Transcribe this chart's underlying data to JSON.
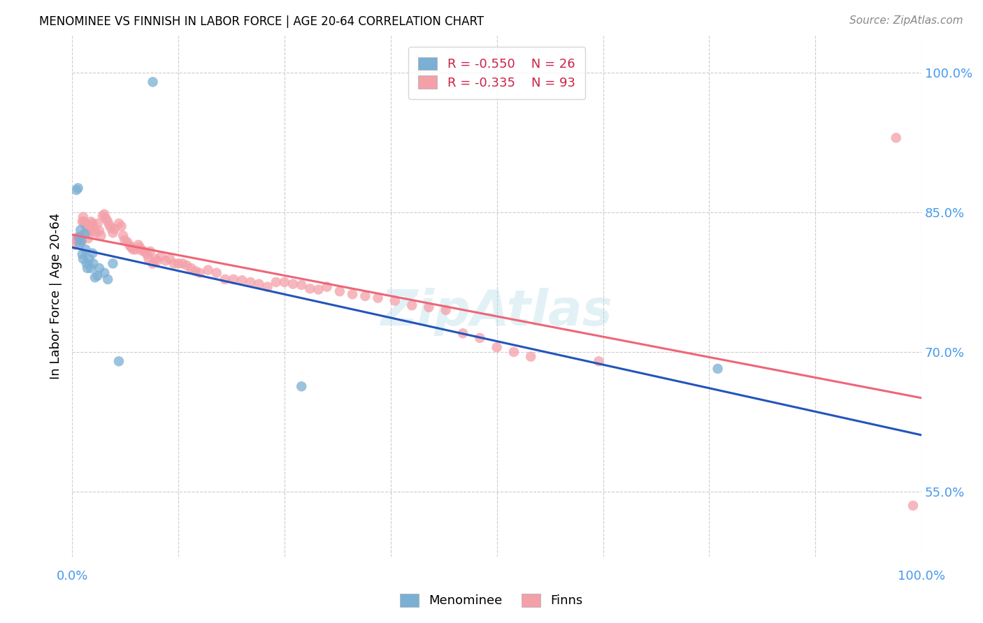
{
  "title": "MENOMINEE VS FINNISH IN LABOR FORCE | AGE 20-64 CORRELATION CHART",
  "source": "Source: ZipAtlas.com",
  "ylabel": "In Labor Force | Age 20-64",
  "ylabel_tick_values": [
    0.55,
    0.7,
    0.85,
    1.0
  ],
  "xlim": [
    0.0,
    1.0
  ],
  "ylim": [
    0.48,
    1.04
  ],
  "legend_blue_R": "-0.550",
  "legend_blue_N": "26",
  "legend_pink_R": "-0.335",
  "legend_pink_N": "93",
  "color_blue": "#7BAFD4",
  "color_pink": "#F4A0A8",
  "color_blue_line": "#2255BB",
  "color_pink_line": "#EE6677",
  "color_axis_label": "#4499EE",
  "menominee_x": [
    0.005,
    0.007,
    0.008,
    0.009,
    0.01,
    0.011,
    0.012,
    0.013,
    0.015,
    0.016,
    0.017,
    0.018,
    0.02,
    0.022,
    0.024,
    0.025,
    0.027,
    0.03,
    0.032,
    0.038,
    0.042,
    0.048,
    0.055,
    0.095,
    0.27,
    0.76
  ],
  "menominee_y": [
    0.874,
    0.876,
    0.823,
    0.816,
    0.831,
    0.82,
    0.805,
    0.8,
    0.827,
    0.81,
    0.795,
    0.79,
    0.8,
    0.79,
    0.806,
    0.795,
    0.78,
    0.782,
    0.79,
    0.785,
    0.778,
    0.795,
    0.69,
    0.99,
    0.663,
    0.682
  ],
  "finns_x": [
    0.003,
    0.005,
    0.006,
    0.007,
    0.008,
    0.009,
    0.01,
    0.011,
    0.012,
    0.013,
    0.014,
    0.015,
    0.016,
    0.017,
    0.018,
    0.019,
    0.02,
    0.022,
    0.024,
    0.025,
    0.026,
    0.028,
    0.03,
    0.032,
    0.034,
    0.036,
    0.038,
    0.04,
    0.042,
    0.044,
    0.046,
    0.048,
    0.05,
    0.055,
    0.058,
    0.06,
    0.062,
    0.065,
    0.068,
    0.07,
    0.072,
    0.075,
    0.078,
    0.08,
    0.082,
    0.085,
    0.088,
    0.09,
    0.092,
    0.095,
    0.098,
    0.1,
    0.105,
    0.11,
    0.115,
    0.12,
    0.125,
    0.13,
    0.135,
    0.14,
    0.145,
    0.15,
    0.16,
    0.17,
    0.18,
    0.19,
    0.2,
    0.21,
    0.22,
    0.23,
    0.24,
    0.25,
    0.26,
    0.27,
    0.28,
    0.29,
    0.3,
    0.315,
    0.33,
    0.345,
    0.36,
    0.38,
    0.4,
    0.42,
    0.44,
    0.46,
    0.48,
    0.5,
    0.52,
    0.54,
    0.62,
    0.97,
    0.99
  ],
  "finns_y": [
    0.815,
    0.82,
    0.823,
    0.82,
    0.82,
    0.824,
    0.822,
    0.818,
    0.84,
    0.845,
    0.84,
    0.838,
    0.836,
    0.83,
    0.828,
    0.822,
    0.835,
    0.84,
    0.838,
    0.835,
    0.83,
    0.828,
    0.838,
    0.83,
    0.825,
    0.846,
    0.848,
    0.843,
    0.84,
    0.836,
    0.833,
    0.828,
    0.832,
    0.838,
    0.835,
    0.825,
    0.82,
    0.818,
    0.814,
    0.812,
    0.81,
    0.81,
    0.815,
    0.812,
    0.809,
    0.808,
    0.805,
    0.8,
    0.808,
    0.795,
    0.8,
    0.798,
    0.803,
    0.798,
    0.8,
    0.795,
    0.795,
    0.795,
    0.793,
    0.79,
    0.787,
    0.785,
    0.788,
    0.785,
    0.778,
    0.778,
    0.777,
    0.775,
    0.773,
    0.77,
    0.775,
    0.775,
    0.773,
    0.772,
    0.768,
    0.767,
    0.77,
    0.765,
    0.762,
    0.76,
    0.758,
    0.755,
    0.75,
    0.748,
    0.745,
    0.72,
    0.715,
    0.705,
    0.7,
    0.695,
    0.69,
    0.93,
    0.535
  ]
}
